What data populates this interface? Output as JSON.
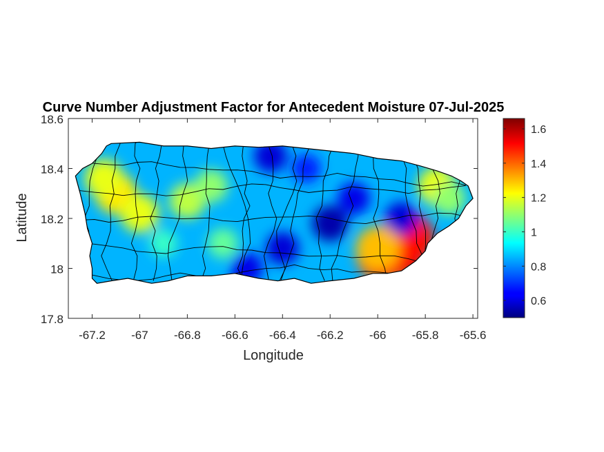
{
  "chart_data": {
    "type": "heatmap",
    "title": "Curve Number Adjustment Factor for Antecedent Moisture 07-Jul-2025",
    "xlabel": "Longitude",
    "ylabel": "Latitude",
    "xlim": [
      -67.3,
      -65.58
    ],
    "ylim": [
      17.8,
      18.6
    ],
    "xticks": [
      -67.2,
      -67,
      -66.8,
      -66.6,
      -66.4,
      -66.2,
      -66,
      -65.8,
      -65.6
    ],
    "xtick_labels": [
      "-67.2",
      "-67",
      "-66.8",
      "-66.6",
      "-66.4",
      "-66.2",
      "-66",
      "-65.8",
      "-65.6"
    ],
    "yticks": [
      17.8,
      18,
      18.2,
      18.4,
      18.6
    ],
    "ytick_labels": [
      "17.8",
      "18",
      "18.2",
      "18.4",
      "18.6"
    ],
    "colormap": "jet",
    "colorbar": {
      "clim": [
        0.5,
        1.66
      ],
      "ticks": [
        0.6,
        0.8,
        1,
        1.2,
        1.4,
        1.6
      ],
      "tick_labels": [
        "0.6",
        "0.8",
        "1",
        "1.2",
        "1.4",
        "1.6"
      ]
    },
    "outline": [
      [
        -67.27,
        18.37
      ],
      [
        -67.24,
        18.4
      ],
      [
        -67.2,
        18.42
      ],
      [
        -67.16,
        18.46
      ],
      [
        -67.14,
        18.49
      ],
      [
        -67.12,
        18.5
      ],
      [
        -67.0,
        18.505
      ],
      [
        -66.9,
        18.49
      ],
      [
        -66.8,
        18.49
      ],
      [
        -66.7,
        18.48
      ],
      [
        -66.6,
        18.49
      ],
      [
        -66.5,
        18.485
      ],
      [
        -66.4,
        18.49
      ],
      [
        -66.3,
        18.48
      ],
      [
        -66.2,
        18.47
      ],
      [
        -66.1,
        18.46
      ],
      [
        -66.0,
        18.44
      ],
      [
        -65.9,
        18.43
      ],
      [
        -65.82,
        18.41
      ],
      [
        -65.75,
        18.39
      ],
      [
        -65.69,
        18.37
      ],
      [
        -65.65,
        18.35
      ],
      [
        -65.62,
        18.33
      ],
      [
        -65.6,
        18.28
      ],
      [
        -65.63,
        18.25
      ],
      [
        -65.66,
        18.2
      ],
      [
        -65.7,
        18.17
      ],
      [
        -65.75,
        18.14
      ],
      [
        -65.79,
        18.1
      ],
      [
        -65.8,
        18.07
      ],
      [
        -65.84,
        18.03
      ],
      [
        -65.9,
        17.99
      ],
      [
        -65.96,
        17.98
      ],
      [
        -66.02,
        17.98
      ],
      [
        -66.1,
        17.96
      ],
      [
        -66.2,
        17.95
      ],
      [
        -66.28,
        17.94
      ],
      [
        -66.35,
        17.96
      ],
      [
        -66.42,
        17.95
      ],
      [
        -66.5,
        17.96
      ],
      [
        -66.6,
        17.98
      ],
      [
        -66.7,
        17.97
      ],
      [
        -66.8,
        17.97
      ],
      [
        -66.88,
        17.95
      ],
      [
        -66.95,
        17.94
      ],
      [
        -67.05,
        17.96
      ],
      [
        -67.12,
        17.95
      ],
      [
        -67.18,
        17.94
      ],
      [
        -67.2,
        17.96
      ],
      [
        -67.2,
        18.0
      ],
      [
        -67.21,
        18.05
      ],
      [
        -67.2,
        18.1
      ],
      [
        -67.22,
        18.16
      ],
      [
        -67.23,
        18.22
      ],
      [
        -67.25,
        18.3
      ],
      [
        -67.27,
        18.37
      ]
    ],
    "hotspots": [
      {
        "lon": -65.92,
        "lat": 18.07,
        "value": 1.55
      },
      {
        "lon": -65.98,
        "lat": 18.05,
        "value": 1.45
      },
      {
        "lon": -65.88,
        "lat": 18.12,
        "value": 1.5
      },
      {
        "lon": -66.0,
        "lat": 18.08,
        "value": 1.3
      },
      {
        "lon": -67.1,
        "lat": 18.3,
        "value": 1.25
      },
      {
        "lon": -67.15,
        "lat": 18.36,
        "value": 1.2
      },
      {
        "lon": -67.0,
        "lat": 18.22,
        "value": 1.2
      },
      {
        "lon": -66.8,
        "lat": 18.27,
        "value": 1.15
      },
      {
        "lon": -66.7,
        "lat": 18.33,
        "value": 1.1
      },
      {
        "lon": -65.75,
        "lat": 18.33,
        "value": 1.2
      },
      {
        "lon": -65.7,
        "lat": 18.28,
        "value": 1.1
      },
      {
        "lon": -66.65,
        "lat": 18.1,
        "value": 1.05
      },
      {
        "lon": -66.9,
        "lat": 18.1,
        "value": 1.0
      },
      {
        "lon": -66.2,
        "lat": 18.18,
        "value": 0.55
      },
      {
        "lon": -66.4,
        "lat": 18.08,
        "value": 0.6
      },
      {
        "lon": -66.45,
        "lat": 18.45,
        "value": 0.6
      },
      {
        "lon": -66.1,
        "lat": 18.28,
        "value": 0.62
      },
      {
        "lon": -66.55,
        "lat": 18.0,
        "value": 0.62
      },
      {
        "lon": -65.9,
        "lat": 18.2,
        "value": 0.6
      },
      {
        "lon": -66.3,
        "lat": 18.4,
        "value": 0.68
      }
    ],
    "base_value": 0.85
  }
}
